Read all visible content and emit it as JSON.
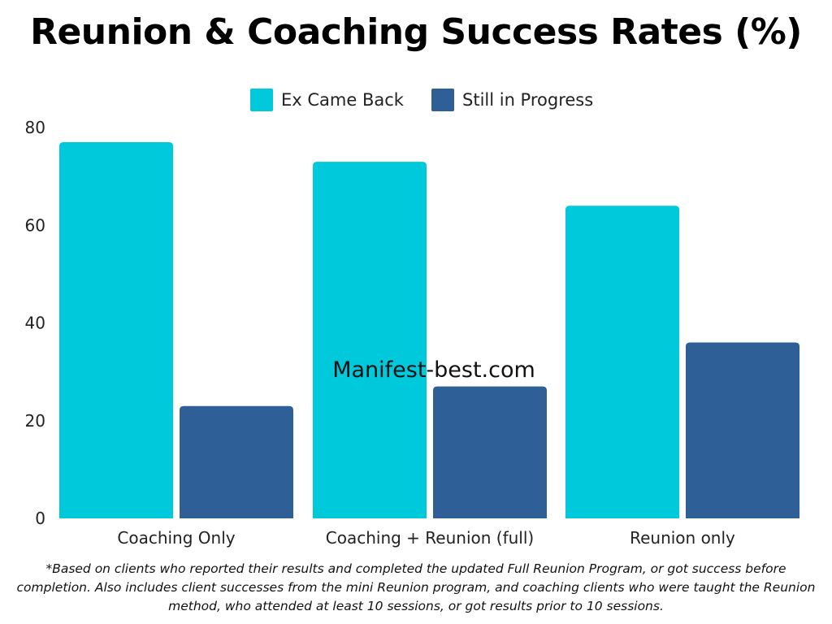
{
  "title": "Reunion & Coaching Success Rates (%)",
  "watermark": "Manifest-best.com",
  "footnote": "*Based on clients who reported their results and completed the updated Full Reunion Program, or got success before completion. Also includes client successes from the mini Reunion program, and coaching clients who were taught the Reunion method, who attended at least 10 sessions, or got results prior to 10 sessions.",
  "colors": {
    "series1": "#00c9db",
    "series2": "#2e5f96"
  },
  "chart_data": {
    "type": "bar",
    "title": "Reunion & Coaching Success Rates (%)",
    "xlabel": "",
    "ylabel": "",
    "categories": [
      "Coaching Only",
      "Coaching + Reunion (full)",
      "Reunion only"
    ],
    "series": [
      {
        "name": "Ex Came Back",
        "values": [
          77,
          73,
          64
        ]
      },
      {
        "name": "Still in Progress",
        "values": [
          23,
          27,
          36
        ]
      }
    ],
    "ylim": [
      0,
      80
    ],
    "yticks": [
      0,
      20,
      40,
      60,
      80
    ],
    "ytick_labels": [
      "0",
      "20",
      "40",
      "60",
      "80"
    ],
    "legend": "top-center",
    "grid": false
  }
}
